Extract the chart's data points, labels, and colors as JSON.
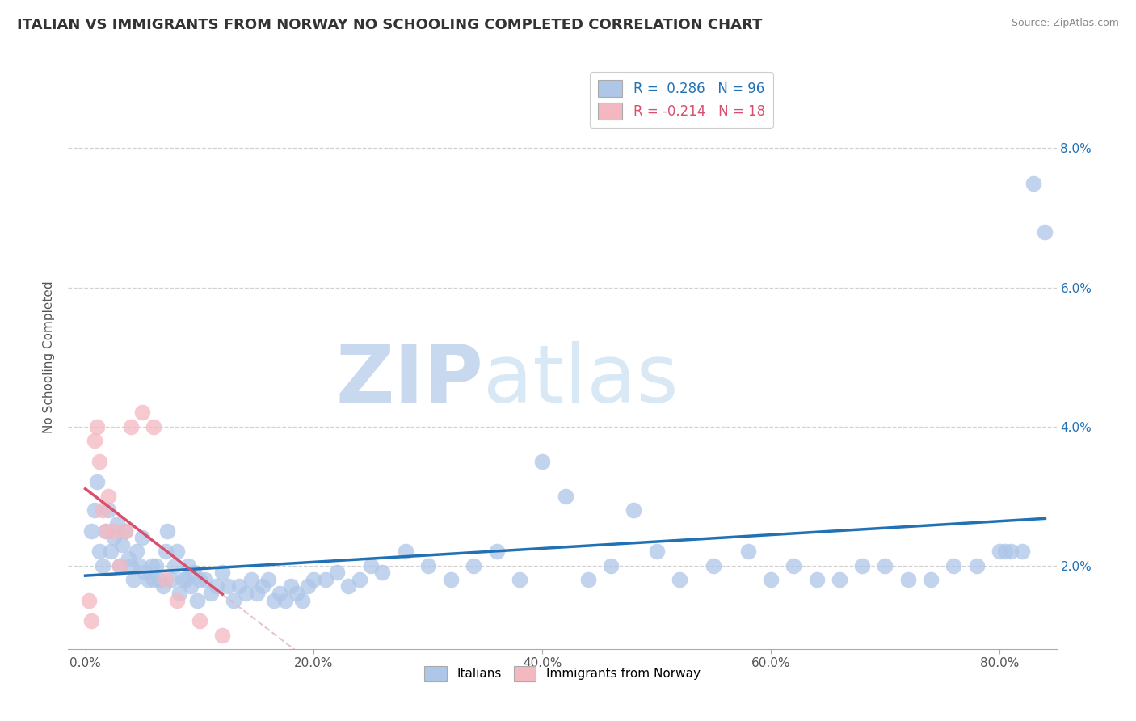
{
  "title": "ITALIAN VS IMMIGRANTS FROM NORWAY NO SCHOOLING COMPLETED CORRELATION CHART",
  "source": "Source: ZipAtlas.com",
  "ylabel": "No Schooling Completed",
  "x_ticks": [
    0.0,
    20.0,
    40.0,
    60.0,
    80.0
  ],
  "y_ticks_right": [
    2.0,
    4.0,
    6.0,
    8.0
  ],
  "legend_entries": [
    {
      "label": "R =  0.286   N = 96",
      "color": "#aec6e8"
    },
    {
      "label": "R = -0.214   N = 18",
      "color": "#f4b8c1"
    }
  ],
  "scatter_blue_color": "#aec6e8",
  "scatter_pink_color": "#f4b8c1",
  "trendline_blue_color": "#2171b5",
  "trendline_pink_color": "#d94f6e",
  "trendline_pink_dashed_color": "#e8b4be",
  "background_color": "#ffffff",
  "title_color": "#333333",
  "title_fontsize": 13,
  "watermark_text": "ZIPatlas",
  "watermark_color": "#dce6f5",
  "blue_x": [
    0.5,
    0.8,
    1.0,
    1.2,
    1.5,
    1.8,
    2.0,
    2.2,
    2.5,
    2.8,
    3.0,
    3.2,
    3.5,
    3.8,
    4.0,
    4.2,
    4.5,
    4.8,
    5.0,
    5.2,
    5.5,
    5.8,
    6.0,
    6.2,
    6.5,
    6.8,
    7.0,
    7.2,
    7.5,
    7.8,
    8.0,
    8.2,
    8.5,
    8.8,
    9.0,
    9.2,
    9.5,
    9.8,
    10.0,
    10.5,
    11.0,
    11.5,
    12.0,
    12.5,
    13.0,
    13.5,
    14.0,
    14.5,
    15.0,
    15.5,
    16.0,
    16.5,
    17.0,
    17.5,
    18.0,
    18.5,
    19.0,
    19.5,
    20.0,
    21.0,
    22.0,
    23.0,
    24.0,
    25.0,
    26.0,
    28.0,
    30.0,
    32.0,
    34.0,
    36.0,
    38.0,
    40.0,
    42.0,
    44.0,
    46.0,
    48.0,
    50.0,
    52.0,
    55.0,
    58.0,
    60.0,
    62.0,
    64.0,
    66.0,
    68.0,
    70.0,
    72.0,
    74.0,
    76.0,
    78.0,
    80.0,
    80.5,
    81.0,
    82.0,
    83.0,
    84.0
  ],
  "blue_y": [
    2.5,
    2.8,
    3.2,
    2.2,
    2.0,
    2.5,
    2.8,
    2.2,
    2.4,
    2.6,
    2.0,
    2.3,
    2.5,
    2.1,
    2.0,
    1.8,
    2.2,
    2.0,
    2.4,
    1.9,
    1.8,
    2.0,
    1.8,
    2.0,
    1.8,
    1.7,
    2.2,
    2.5,
    1.8,
    2.0,
    2.2,
    1.6,
    1.8,
    1.8,
    2.0,
    1.7,
    1.9,
    1.5,
    1.8,
    1.8,
    1.6,
    1.7,
    1.9,
    1.7,
    1.5,
    1.7,
    1.6,
    1.8,
    1.6,
    1.7,
    1.8,
    1.5,
    1.6,
    1.5,
    1.7,
    1.6,
    1.5,
    1.7,
    1.8,
    1.8,
    1.9,
    1.7,
    1.8,
    2.0,
    1.9,
    2.2,
    2.0,
    1.8,
    2.0,
    2.2,
    1.8,
    3.5,
    3.0,
    1.8,
    2.0,
    2.8,
    2.2,
    1.8,
    2.0,
    2.2,
    1.8,
    2.0,
    1.8,
    1.8,
    2.0,
    2.0,
    1.8,
    1.8,
    2.0,
    2.0,
    2.2,
    2.2,
    2.2,
    2.2,
    7.5,
    6.8
  ],
  "pink_x": [
    0.3,
    0.5,
    0.8,
    1.0,
    1.2,
    1.5,
    1.8,
    2.0,
    2.5,
    3.0,
    3.5,
    4.0,
    5.0,
    6.0,
    7.0,
    8.0,
    10.0,
    12.0
  ],
  "pink_y": [
    1.5,
    1.2,
    3.8,
    4.0,
    3.5,
    2.8,
    2.5,
    3.0,
    2.5,
    2.0,
    2.5,
    4.0,
    4.2,
    4.0,
    1.8,
    1.5,
    1.2,
    1.0
  ]
}
